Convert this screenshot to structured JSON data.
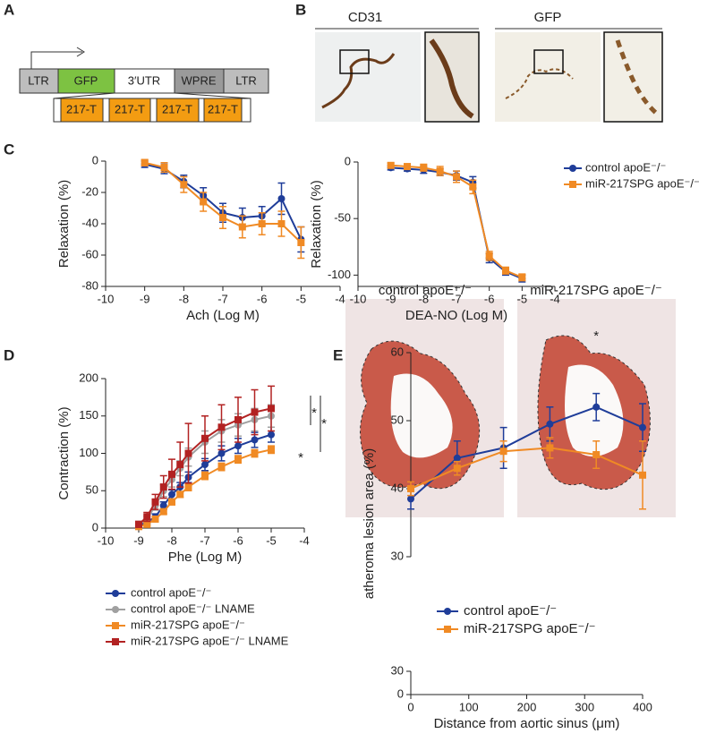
{
  "panels": [
    "A",
    "B",
    "C",
    "D",
    "E"
  ],
  "construct": {
    "elements": [
      "LTR",
      "GFP",
      "3′UTR",
      "WPRE",
      "LTR"
    ],
    "inserts": [
      "217-T",
      "217-T",
      "217-T",
      "217-T"
    ]
  },
  "micrographs": {
    "labels": [
      "CD31",
      "GFP"
    ]
  },
  "lesion_images": {
    "labels": [
      "control apoE⁻/⁻",
      "miR-217SPG apoE⁻/⁻"
    ]
  },
  "chart_data": [
    {
      "type": "line",
      "xlabel": "Ach (Log M)",
      "ylabel": "Relaxation (%)",
      "xlim": [
        -10,
        -4
      ],
      "xticks": [
        -10,
        -9,
        -8,
        -7,
        -6,
        -5,
        -4
      ],
      "ylim": [
        -80,
        0
      ],
      "yticks": [
        -80,
        -60,
        -40,
        -20,
        0
      ],
      "x": [
        -9,
        -8.5,
        -8,
        -7.5,
        -7,
        -6.5,
        -6,
        -5.5,
        -5
      ],
      "series": [
        {
          "color": "#1f3d99",
          "marker": "circle",
          "values": [
            -2,
            -5,
            -13,
            -22,
            -33,
            -36,
            -35,
            -24,
            -50
          ],
          "errors": [
            2,
            3,
            4,
            5,
            6,
            6,
            6,
            10,
            8
          ]
        },
        {
          "color": "#f08a24",
          "marker": "square",
          "values": [
            -1,
            -4,
            -15,
            -26,
            -36,
            -42,
            -40,
            -40,
            -52
          ],
          "errors": [
            2,
            3,
            5,
            6,
            7,
            7,
            7,
            8,
            10
          ]
        }
      ]
    },
    {
      "type": "line",
      "xlabel": "DEA-NO (Log M)",
      "ylabel": "Relaxation (%)",
      "xlim": [
        -10,
        -4
      ],
      "xticks": [
        -10,
        -9,
        -8,
        -7,
        -6,
        -5,
        -4
      ],
      "ylim": [
        -110,
        0
      ],
      "yticks": [
        -100,
        -50,
        0
      ],
      "x": [
        -9,
        -8.5,
        -8,
        -7.5,
        -7,
        -6.5,
        -6,
        -5.5,
        -5
      ],
      "series": [
        {
          "name": "control apoE⁻/⁻",
          "color": "#1f3d99",
          "marker": "circle",
          "values": [
            -5,
            -6,
            -7,
            -9,
            -12,
            -18,
            -85,
            -97,
            -103
          ],
          "errors": [
            2,
            2,
            3,
            3,
            4,
            5,
            4,
            3,
            3
          ]
        },
        {
          "name": "miR-217SPG apoE⁻/⁻",
          "color": "#f08a24",
          "marker": "square",
          "values": [
            -3,
            -4,
            -5,
            -8,
            -13,
            -22,
            -83,
            -96,
            -102
          ],
          "errors": [
            2,
            2,
            3,
            4,
            5,
            6,
            4,
            3,
            3
          ]
        }
      ]
    },
    {
      "type": "line",
      "xlabel": "Phe (Log M)",
      "ylabel": "Contraction (%)",
      "xlim": [
        -10,
        -4
      ],
      "xticks": [
        -10,
        -9,
        -8,
        -7,
        -6,
        -5,
        -4
      ],
      "ylim": [
        0,
        200
      ],
      "yticks": [
        0,
        50,
        100,
        150,
        200
      ],
      "x": [
        -9,
        -8.75,
        -8.5,
        -8.25,
        -8,
        -7.75,
        -7.5,
        -7,
        -6.5,
        -6,
        -5.5,
        -5
      ],
      "annotations": [
        "*",
        "*",
        "*"
      ],
      "series": [
        {
          "name": "control apoE⁻/⁻",
          "color": "#1f3d99",
          "marker": "circle",
          "values": [
            3,
            8,
            15,
            30,
            45,
            55,
            68,
            85,
            100,
            110,
            118,
            125
          ],
          "errors": [
            2,
            3,
            4,
            5,
            6,
            6,
            7,
            8,
            10,
            10,
            10,
            10
          ]
        },
        {
          "name": "control apoE⁻/⁻ LNAME",
          "color": "#a0a0a0",
          "marker": "circle",
          "values": [
            5,
            12,
            30,
            50,
            65,
            80,
            95,
            115,
            130,
            138,
            145,
            150
          ],
          "errors": [
            3,
            4,
            6,
            8,
            10,
            10,
            12,
            15,
            15,
            15,
            15,
            15
          ]
        },
        {
          "name": "miR-217SPG apoE⁻/⁻",
          "color": "#f08a24",
          "marker": "square",
          "values": [
            2,
            5,
            12,
            22,
            35,
            45,
            55,
            70,
            82,
            92,
            100,
            105
          ],
          "errors": [
            2,
            2,
            3,
            3,
            4,
            4,
            5,
            5,
            5,
            5,
            5,
            5
          ]
        },
        {
          "name": "miR-217SPG apoE⁻/⁻ LNAME",
          "color": "#b22222",
          "marker": "square",
          "values": [
            5,
            15,
            35,
            55,
            72,
            85,
            100,
            120,
            135,
            145,
            155,
            160
          ],
          "errors": [
            4,
            6,
            10,
            15,
            20,
            30,
            40,
            30,
            30,
            30,
            30,
            30
          ]
        }
      ]
    },
    {
      "type": "line",
      "xlabel": "Distance from aortic sinus (μm)",
      "ylabel": "atheroma lesion area (%)",
      "xlim": [
        0,
        400
      ],
      "xticks": [
        0,
        100,
        200,
        300,
        400
      ],
      "ylim": [
        30,
        60
      ],
      "yticks": [
        30,
        40,
        50,
        60
      ],
      "ylim_lower": [
        0,
        30
      ],
      "yticks_lower": [
        0,
        30
      ],
      "x": [
        0,
        80,
        160,
        240,
        320,
        400
      ],
      "annotations": [
        {
          "x": 320,
          "text": "*"
        }
      ],
      "series": [
        {
          "name": "control apoE⁻/⁻",
          "color": "#1f3d99",
          "marker": "circle",
          "values": [
            38.5,
            44.5,
            46,
            49.5,
            52,
            49
          ],
          "errors": [
            1.5,
            2.5,
            3,
            2.5,
            2,
            3.5
          ]
        },
        {
          "name": "miR-217SPG apoE⁻/⁻",
          "color": "#f08a24",
          "marker": "square",
          "values": [
            40,
            43,
            45.5,
            46,
            45,
            42
          ],
          "errors": [
            1,
            1,
            1.5,
            1.5,
            2,
            5
          ]
        }
      ]
    }
  ]
}
